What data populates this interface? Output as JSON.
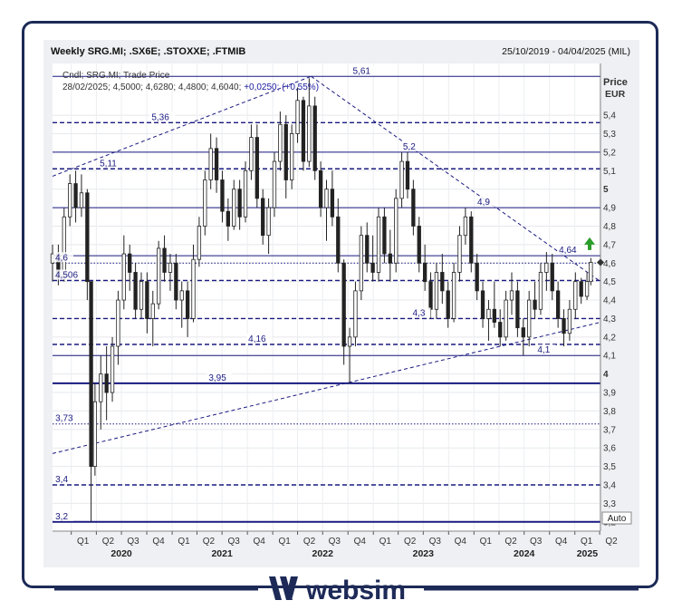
{
  "header": {
    "title": "Weekly SRG.MI; .SX6E; .STOXXE; .FTMIB",
    "date_range": "25/10/2019 - 04/04/2025 (MIL)"
  },
  "info": {
    "line1": "Cndl; SRG.MI; Trade Price",
    "line2_prefix": "28/02/2025; 4,5000; 4,6280; 4,4800; 4,6040; ",
    "line2_change": "+0,0250; (+0,55%)"
  },
  "axis": {
    "price_label": "Price",
    "currency_label": "EUR",
    "auto_label": "Auto"
  },
  "brand": {
    "name": "websim",
    "color": "#1d2a57"
  },
  "colors": {
    "line": "#1a1a80",
    "candle": "#222222",
    "arrow": "#2a9d2a"
  },
  "chart_data": {
    "type": "candlestick",
    "title": "Weekly SRG.MI; .SX6E; .STOXXE; .FTMIB",
    "ylabel": "Price EUR",
    "ylim": [
      3.15,
      5.68
    ],
    "x_range": [
      "2019-10-25",
      "2025-04-04"
    ],
    "y_ticks": [
      "5,4",
      "5,3",
      "5,2",
      "5,1",
      "5",
      "4,9",
      "4,8",
      "4,7",
      "4,6",
      "4,5",
      "4,4",
      "4,3",
      "4,2",
      "4,1",
      "4",
      "3,9",
      "3,8",
      "3,7",
      "3,6",
      "3,5",
      "3,4",
      "3,3",
      "3,2"
    ],
    "bold_ticks": [
      "5",
      "4"
    ],
    "quarters": [
      {
        "label": "Q1",
        "date": "2020-01-01"
      },
      {
        "label": "Q2",
        "date": "2020-04-01"
      },
      {
        "label": "Q3",
        "date": "2020-07-01"
      },
      {
        "label": "Q4",
        "date": "2020-10-01"
      },
      {
        "label": "Q1",
        "date": "2021-01-01"
      },
      {
        "label": "Q2",
        "date": "2021-04-01"
      },
      {
        "label": "Q3",
        "date": "2021-07-01"
      },
      {
        "label": "Q4",
        "date": "2021-10-01"
      },
      {
        "label": "Q1",
        "date": "2022-01-01"
      },
      {
        "label": "Q2",
        "date": "2022-04-01"
      },
      {
        "label": "Q3",
        "date": "2022-07-01"
      },
      {
        "label": "Q4",
        "date": "2022-10-01"
      },
      {
        "label": "Q1",
        "date": "2023-01-01"
      },
      {
        "label": "Q2",
        "date": "2023-04-01"
      },
      {
        "label": "Q3",
        "date": "2023-07-01"
      },
      {
        "label": "Q4",
        "date": "2023-10-01"
      },
      {
        "label": "Q1",
        "date": "2024-01-01"
      },
      {
        "label": "Q2",
        "date": "2024-04-01"
      },
      {
        "label": "Q3",
        "date": "2024-07-01"
      },
      {
        "label": "Q4",
        "date": "2024-10-01"
      },
      {
        "label": "Q1",
        "date": "2025-01-01"
      },
      {
        "label": "Q2",
        "date": "2025-04-01"
      }
    ],
    "years": [
      {
        "label": "2020",
        "date": "2020-07-01"
      },
      {
        "label": "2021",
        "date": "2021-07-01"
      },
      {
        "label": "2022",
        "date": "2022-07-01"
      },
      {
        "label": "2023",
        "date": "2023-07-01"
      },
      {
        "label": "2024",
        "date": "2024-07-01"
      },
      {
        "label": "2025",
        "date": "2025-02-15"
      }
    ],
    "levels": [
      {
        "label": "5,61",
        "value": 5.61,
        "style": "solid",
        "label_date": "2022-10-15"
      },
      {
        "label": "5,36",
        "value": 5.36,
        "style": "dashed",
        "label_date": "2020-10-15"
      },
      {
        "label": "5,2",
        "value": 5.2,
        "style": "solid",
        "label_date": "2023-04-15"
      },
      {
        "label": "5,11",
        "value": 5.11,
        "style": "dashed",
        "label_date": "2020-04-10"
      },
      {
        "label": "4,9",
        "value": 4.9,
        "style": "solid",
        "label_date": "2024-01-10"
      },
      {
        "label": "4,64",
        "value": 4.64,
        "style": "solid",
        "label_date": "2024-11-01"
      },
      {
        "label": "4,6",
        "value": 4.6,
        "style": "dotted",
        "label_date": "2019-10-25"
      },
      {
        "label": "4,506",
        "value": 4.506,
        "style": "dashed",
        "label_date": "2019-10-25"
      },
      {
        "label": "4,3",
        "value": 4.3,
        "style": "dashed",
        "label_date": "2023-05-20"
      },
      {
        "label": "4,16",
        "value": 4.16,
        "style": "dashed",
        "label_date": "2021-10-01"
      },
      {
        "label": "4,1",
        "value": 4.1,
        "style": "solid",
        "label_date": "2024-08-15"
      },
      {
        "label": "3,95",
        "value": 3.95,
        "style": "solid_thick",
        "label_date": "2021-05-10"
      },
      {
        "label": "3,73",
        "value": 3.73,
        "style": "dotted",
        "label_date": "2019-11-01"
      },
      {
        "label": "3,4",
        "value": 3.4,
        "style": "dashed",
        "label_date": "2019-11-01"
      },
      {
        "label": "3,2",
        "value": 3.2,
        "style": "solid_thick",
        "label_date": "2019-11-01"
      }
    ],
    "trendlines": [
      {
        "from": {
          "date": "2019-10-25",
          "value": 5.07
        },
        "to": {
          "date": "2022-05-20",
          "value": 5.61
        }
      },
      {
        "from": {
          "date": "2022-05-20",
          "value": 5.61
        },
        "to": {
          "date": "2025-04-04",
          "value": 4.5
        }
      },
      {
        "from": {
          "date": "2019-10-25",
          "value": 3.57
        },
        "to": {
          "date": "2025-04-04",
          "value": 4.28
        }
      }
    ],
    "last_price": 4.604,
    "candles": [
      [
        "2019-10-25",
        4.6,
        4.7,
        4.5,
        4.65
      ],
      [
        "2019-11-15",
        4.65,
        4.7,
        4.48,
        4.52
      ],
      [
        "2019-12-06",
        4.52,
        4.9,
        4.5,
        4.85
      ],
      [
        "2019-12-27",
        4.85,
        5.08,
        4.8,
        5.03
      ],
      [
        "2020-01-17",
        5.03,
        5.1,
        4.82,
        4.9
      ],
      [
        "2020-02-07",
        4.9,
        5.08,
        4.85,
        4.98
      ],
      [
        "2020-02-28",
        4.98,
        5.0,
        4.4,
        4.5
      ],
      [
        "2020-03-13",
        4.5,
        4.5,
        3.2,
        3.5
      ],
      [
        "2020-03-27",
        3.5,
        3.95,
        3.45,
        3.85
      ],
      [
        "2020-04-17",
        3.85,
        4.1,
        3.7,
        4.0
      ],
      [
        "2020-05-08",
        4.0,
        4.15,
        3.75,
        3.9
      ],
      [
        "2020-05-29",
        3.9,
        4.2,
        3.85,
        4.15
      ],
      [
        "2020-06-19",
        4.15,
        4.45,
        4.05,
        4.4
      ],
      [
        "2020-07-10",
        4.4,
        4.75,
        4.35,
        4.65
      ],
      [
        "2020-07-31",
        4.65,
        4.7,
        4.45,
        4.55
      ],
      [
        "2020-08-21",
        4.55,
        4.6,
        4.3,
        4.35
      ],
      [
        "2020-09-11",
        4.35,
        4.55,
        4.3,
        4.5
      ],
      [
        "2020-10-02",
        4.5,
        4.55,
        4.22,
        4.3
      ],
      [
        "2020-10-23",
        4.3,
        4.45,
        4.15,
        4.38
      ],
      [
        "2020-11-13",
        4.38,
        4.72,
        4.35,
        4.68
      ],
      [
        "2020-12-04",
        4.68,
        4.75,
        4.5,
        4.55
      ],
      [
        "2020-12-25",
        4.55,
        4.65,
        4.45,
        4.6
      ],
      [
        "2021-01-15",
        4.6,
        4.65,
        4.35,
        4.4
      ],
      [
        "2021-02-05",
        4.4,
        4.5,
        4.25,
        4.45
      ],
      [
        "2021-02-26",
        4.45,
        4.5,
        4.2,
        4.3
      ],
      [
        "2021-03-19",
        4.3,
        4.7,
        4.28,
        4.62
      ],
      [
        "2021-04-09",
        4.62,
        4.85,
        4.58,
        4.8
      ],
      [
        "2021-04-30",
        4.8,
        5.1,
        4.75,
        5.05
      ],
      [
        "2021-05-21",
        5.05,
        5.3,
        5.0,
        5.22
      ],
      [
        "2021-06-11",
        5.22,
        5.28,
        4.98,
        5.05
      ],
      [
        "2021-07-02",
        5.05,
        5.1,
        4.82,
        4.88
      ],
      [
        "2021-07-23",
        4.88,
        4.95,
        4.72,
        4.8
      ],
      [
        "2021-08-13",
        4.8,
        5.05,
        4.78,
        5.0
      ],
      [
        "2021-09-03",
        5.0,
        5.05,
        4.78,
        4.85
      ],
      [
        "2021-09-24",
        4.85,
        5.15,
        4.82,
        5.1
      ],
      [
        "2021-10-15",
        5.1,
        5.35,
        5.05,
        5.28
      ],
      [
        "2021-11-05",
        5.28,
        5.35,
        4.9,
        4.95
      ],
      [
        "2021-11-26",
        4.95,
        5.0,
        4.7,
        4.75
      ],
      [
        "2021-12-17",
        4.75,
        4.95,
        4.65,
        4.9
      ],
      [
        "2022-01-07",
        4.9,
        5.2,
        4.85,
        5.15
      ],
      [
        "2022-01-28",
        5.15,
        5.42,
        5.1,
        5.35
      ],
      [
        "2022-02-18",
        5.35,
        5.4,
        4.95,
        5.05
      ],
      [
        "2022-03-11",
        5.05,
        5.35,
        5.0,
        5.3
      ],
      [
        "2022-04-01",
        5.3,
        5.55,
        5.25,
        5.48
      ],
      [
        "2022-04-22",
        5.48,
        5.5,
        5.1,
        5.15
      ],
      [
        "2022-05-13",
        5.15,
        5.6,
        5.12,
        5.45
      ],
      [
        "2022-06-03",
        5.45,
        5.5,
        5.05,
        5.1
      ],
      [
        "2022-06-24",
        5.1,
        5.15,
        4.85,
        4.9
      ],
      [
        "2022-07-15",
        4.9,
        5.05,
        4.72,
        5.0
      ],
      [
        "2022-08-05",
        5.0,
        5.1,
        4.8,
        4.85
      ],
      [
        "2022-08-26",
        4.85,
        4.95,
        4.55,
        4.6
      ],
      [
        "2022-09-16",
        4.6,
        4.62,
        4.05,
        4.15
      ],
      [
        "2022-10-07",
        4.15,
        4.25,
        3.95,
        4.2
      ],
      [
        "2022-10-28",
        4.2,
        4.5,
        4.15,
        4.45
      ],
      [
        "2022-11-18",
        4.45,
        4.8,
        4.4,
        4.75
      ],
      [
        "2022-12-09",
        4.75,
        4.82,
        4.55,
        4.6
      ],
      [
        "2022-12-30",
        4.6,
        4.75,
        4.5,
        4.55
      ],
      [
        "2023-01-20",
        4.55,
        4.9,
        4.5,
        4.85
      ],
      [
        "2023-02-10",
        4.85,
        4.9,
        4.6,
        4.65
      ],
      [
        "2023-03-03",
        4.65,
        4.78,
        4.5,
        4.6
      ],
      [
        "2023-03-24",
        4.6,
        5.0,
        4.55,
        4.95
      ],
      [
        "2023-04-14",
        4.95,
        5.2,
        4.9,
        5.15
      ],
      [
        "2023-05-05",
        5.15,
        5.2,
        4.95,
        5.0
      ],
      [
        "2023-05-26",
        5.0,
        5.05,
        4.75,
        4.8
      ],
      [
        "2023-06-16",
        4.8,
        4.85,
        4.55,
        4.6
      ],
      [
        "2023-07-07",
        4.6,
        4.7,
        4.45,
        4.5
      ],
      [
        "2023-07-28",
        4.5,
        4.55,
        4.3,
        4.35
      ],
      [
        "2023-08-18",
        4.35,
        4.6,
        4.3,
        4.55
      ],
      [
        "2023-09-08",
        4.55,
        4.65,
        4.38,
        4.45
      ],
      [
        "2023-09-29",
        4.45,
        4.5,
        4.25,
        4.3
      ],
      [
        "2023-10-20",
        4.3,
        4.6,
        4.28,
        4.55
      ],
      [
        "2023-11-10",
        4.55,
        4.8,
        4.5,
        4.75
      ],
      [
        "2023-12-01",
        4.75,
        4.9,
        4.7,
        4.85
      ],
      [
        "2023-12-22",
        4.85,
        4.88,
        4.55,
        4.6
      ],
      [
        "2024-01-12",
        4.6,
        4.65,
        4.4,
        4.45
      ],
      [
        "2024-02-02",
        4.45,
        4.5,
        4.25,
        4.3
      ],
      [
        "2024-02-23",
        4.3,
        4.4,
        4.18,
        4.35
      ],
      [
        "2024-03-15",
        4.35,
        4.5,
        4.25,
        4.28
      ],
      [
        "2024-04-05",
        4.28,
        4.35,
        4.15,
        4.2
      ],
      [
        "2024-04-26",
        4.2,
        4.45,
        4.18,
        4.4
      ],
      [
        "2024-05-17",
        4.4,
        4.55,
        4.32,
        4.45
      ],
      [
        "2024-06-07",
        4.45,
        4.5,
        4.2,
        4.25
      ],
      [
        "2024-06-28",
        4.25,
        4.3,
        4.1,
        4.2
      ],
      [
        "2024-07-19",
        4.2,
        4.45,
        4.15,
        4.4
      ],
      [
        "2024-08-09",
        4.4,
        4.5,
        4.3,
        4.35
      ],
      [
        "2024-08-30",
        4.35,
        4.6,
        4.32,
        4.55
      ],
      [
        "2024-09-20",
        4.55,
        4.66,
        4.45,
        4.6
      ],
      [
        "2024-10-11",
        4.6,
        4.65,
        4.4,
        4.45
      ],
      [
        "2024-11-01",
        4.45,
        4.5,
        4.25,
        4.3
      ],
      [
        "2024-11-22",
        4.3,
        4.35,
        4.15,
        4.22
      ],
      [
        "2024-12-13",
        4.22,
        4.4,
        4.18,
        4.35
      ],
      [
        "2025-01-03",
        4.35,
        4.55,
        4.3,
        4.5
      ],
      [
        "2025-01-24",
        4.5,
        4.52,
        4.38,
        4.42
      ],
      [
        "2025-02-14",
        4.42,
        4.55,
        4.4,
        4.5
      ],
      [
        "2025-02-28",
        4.5,
        4.628,
        4.48,
        4.604
      ]
    ]
  }
}
